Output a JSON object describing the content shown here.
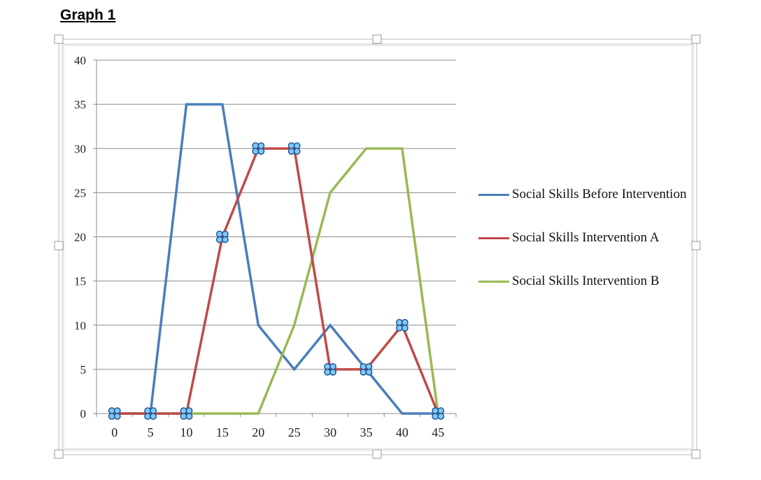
{
  "heading": "Graph 1",
  "chart_data": {
    "type": "line",
    "title": "",
    "xlabel": "",
    "ylabel": "",
    "x": [
      0,
      5,
      10,
      15,
      20,
      25,
      30,
      35,
      40,
      45
    ],
    "x_tick_labels": [
      "0",
      "5",
      "10",
      "15",
      "20",
      "25",
      "30",
      "35",
      "40",
      "45"
    ],
    "y_tick_labels": [
      "0",
      "5",
      "10",
      "15",
      "20",
      "25",
      "30",
      "35",
      "40"
    ],
    "ylim": [
      0,
      40
    ],
    "grid": true,
    "legend_position": "right",
    "series": [
      {
        "name": "Social Skills Before Intervention",
        "color": "#4a7ebb",
        "marker": "none",
        "values": [
          0,
          0,
          35,
          35,
          10,
          5,
          10,
          5,
          0,
          0
        ]
      },
      {
        "name": "Social Skills Intervention A",
        "color": "#be4b48",
        "marker": "selection-handle",
        "values": [
          0,
          0,
          0,
          20,
          30,
          30,
          5,
          5,
          10,
          0
        ]
      },
      {
        "name": "Social Skills Intervention B",
        "color": "#98b954",
        "marker": "none",
        "values": [
          0,
          0,
          0,
          0,
          0,
          10,
          25,
          30,
          30,
          0
        ]
      }
    ]
  }
}
